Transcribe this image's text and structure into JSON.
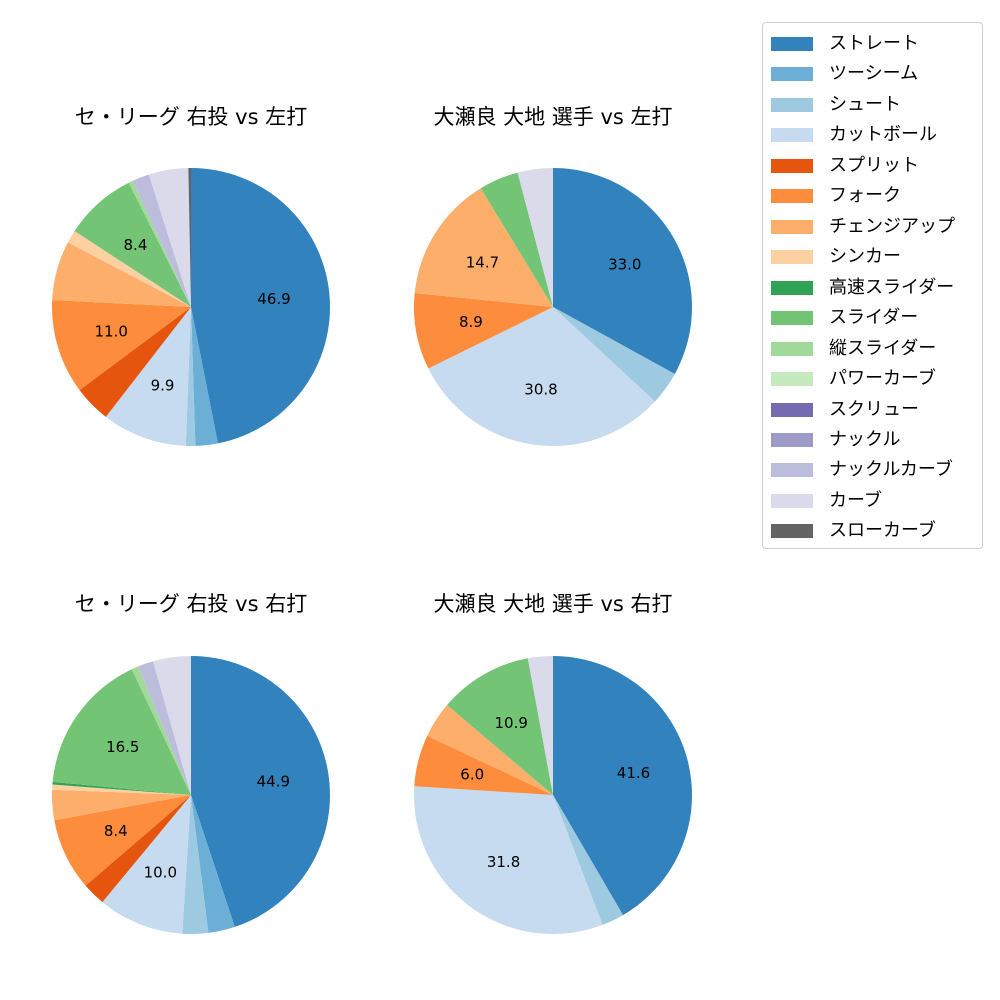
{
  "chart_data": [
    {
      "type": "pie",
      "title": "セ・リーグ 右投 vs 左打",
      "categories": [
        "ストレート",
        "ツーシーム",
        "シュート",
        "カットボール",
        "スプリット",
        "フォーク",
        "チェンジアップ",
        "シンカー",
        "高速スライダー",
        "スライダー",
        "縦スライダー",
        "パワーカーブ",
        "スクリュー",
        "ナックル",
        "ナックルカーブ",
        "カーブ",
        "スローカーブ"
      ],
      "values": [
        46.9,
        2.6,
        1.1,
        9.9,
        4.3,
        11.0,
        6.9,
        1.5,
        0.0,
        8.4,
        0.5,
        0.0,
        0.0,
        0.0,
        2.0,
        4.6,
        0.3
      ],
      "labels_shown": {
        "ストレート": "46.9",
        "カットボール": "9.9",
        "フォーク": "11.0",
        "スライダー": "8.4"
      }
    },
    {
      "type": "pie",
      "title": "大瀬良 大地 選手 vs 左打",
      "categories": [
        "ストレート",
        "ツーシーム",
        "シュート",
        "カットボール",
        "スプリット",
        "フォーク",
        "チェンジアップ",
        "シンカー",
        "高速スライダー",
        "スライダー",
        "縦スライダー",
        "パワーカーブ",
        "スクリュー",
        "ナックル",
        "ナックルカーブ",
        "カーブ",
        "スローカーブ"
      ],
      "values": [
        33.0,
        0.0,
        3.9,
        30.8,
        0.0,
        8.9,
        14.7,
        0.0,
        0.0,
        4.6,
        0.0,
        0.0,
        0.0,
        0.0,
        0.0,
        4.1,
        0.0
      ],
      "labels_shown": {
        "ストレート": "33.0",
        "カットボール": "30.8",
        "フォーク": "8.9",
        "チェンジアップ": "14.7"
      }
    },
    {
      "type": "pie",
      "title": "セ・リーグ 右投 vs 右打",
      "categories": [
        "ストレート",
        "ツーシーム",
        "シュート",
        "カットボール",
        "スプリット",
        "フォーク",
        "チェンジアップ",
        "シンカー",
        "高速スライダー",
        "スライダー",
        "縦スライダー",
        "パワーカーブ",
        "スクリュー",
        "ナックル",
        "ナックルカーブ",
        "カーブ",
        "スローカーブ"
      ],
      "values": [
        44.9,
        3.1,
        3.0,
        10.0,
        2.7,
        8.4,
        3.5,
        0.6,
        0.3,
        16.5,
        0.8,
        0.0,
        0.0,
        0.0,
        1.8,
        4.4,
        0.0
      ],
      "labels_shown": {
        "ストレート": "44.9",
        "カットボール": "10.0",
        "フォーク": "8.4",
        "スライダー": "16.5"
      }
    },
    {
      "type": "pie",
      "title": "大瀬良 大地 選手 vs 右打",
      "categories": [
        "ストレート",
        "ツーシーム",
        "シュート",
        "カットボール",
        "スプリット",
        "フォーク",
        "チェンジアップ",
        "シンカー",
        "高速スライダー",
        "スライダー",
        "縦スライダー",
        "パワーカーブ",
        "スクリュー",
        "ナックル",
        "ナックルカーブ",
        "カーブ",
        "スローカーブ"
      ],
      "values": [
        41.6,
        0.0,
        2.6,
        31.8,
        0.0,
        6.0,
        4.2,
        0.0,
        0.0,
        10.9,
        0.0,
        0.0,
        0.0,
        0.0,
        0.0,
        2.9,
        0.0
      ],
      "labels_shown": {
        "ストレート": "41.6",
        "カットボール": "31.8",
        "フォーク": "6.0",
        "スライダー": "10.9"
      }
    }
  ],
  "legend": {
    "position": "upper right",
    "items": [
      {
        "label": "ストレート",
        "color": "#3182bd"
      },
      {
        "label": "ツーシーム",
        "color": "#6baed6"
      },
      {
        "label": "シュート",
        "color": "#9ecae1"
      },
      {
        "label": "カットボール",
        "color": "#c6dbef"
      },
      {
        "label": "スプリット",
        "color": "#e6550d"
      },
      {
        "label": "フォーク",
        "color": "#fd8d3c"
      },
      {
        "label": "チェンジアップ",
        "color": "#fdae6b"
      },
      {
        "label": "シンカー",
        "color": "#fdd0a2"
      },
      {
        "label": "高速スライダー",
        "color": "#31a354"
      },
      {
        "label": "スライダー",
        "color": "#74c476"
      },
      {
        "label": "縦スライダー",
        "color": "#a1d99b"
      },
      {
        "label": "パワーカーブ",
        "color": "#c7e9c0"
      },
      {
        "label": "スクリュー",
        "color": "#756bb1"
      },
      {
        "label": "ナックル",
        "color": "#9e9ac8"
      },
      {
        "label": "ナックルカーブ",
        "color": "#bcbddc"
      },
      {
        "label": "カーブ",
        "color": "#dadaeb"
      },
      {
        "label": "スローカーブ",
        "color": "#636363"
      }
    ]
  },
  "label_threshold": 5.5
}
